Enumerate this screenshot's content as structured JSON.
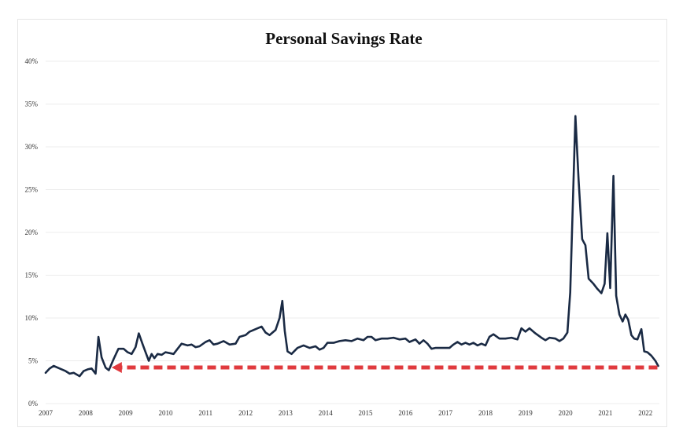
{
  "chart_data": {
    "type": "line",
    "title": "Personal Savings Rate",
    "xlabel": "",
    "ylabel": "",
    "xlim": [
      2007.0,
      2022.35
    ],
    "ylim": [
      0,
      40
    ],
    "grid": true,
    "x_ticks": [
      "2007",
      "2008",
      "2009",
      "2010",
      "2011",
      "2012",
      "2013",
      "2014",
      "2015",
      "2016",
      "2017",
      "2018",
      "2019",
      "2020",
      "2021",
      "2022"
    ],
    "y_ticks": [
      "0%",
      "5%",
      "10%",
      "15%",
      "20%",
      "25%",
      "30%",
      "35%",
      "40%"
    ],
    "line_color": "#1a2a44",
    "series": [
      {
        "points": [
          [
            2007.0,
            3.6
          ],
          [
            2007.1,
            4.1
          ],
          [
            2007.2,
            4.4
          ],
          [
            2007.35,
            4.1
          ],
          [
            2007.5,
            3.8
          ],
          [
            2007.6,
            3.5
          ],
          [
            2007.7,
            3.6
          ],
          [
            2007.85,
            3.2
          ],
          [
            2007.95,
            3.8
          ],
          [
            2008.05,
            4.0
          ],
          [
            2008.15,
            4.1
          ],
          [
            2008.25,
            3.5
          ],
          [
            2008.32,
            7.8
          ],
          [
            2008.4,
            5.4
          ],
          [
            2008.5,
            4.2
          ],
          [
            2008.58,
            3.9
          ],
          [
            2008.7,
            5.2
          ],
          [
            2008.82,
            6.4
          ],
          [
            2008.95,
            6.4
          ],
          [
            2009.05,
            6.0
          ],
          [
            2009.15,
            5.8
          ],
          [
            2009.25,
            6.6
          ],
          [
            2009.33,
            8.2
          ],
          [
            2009.42,
            7.0
          ],
          [
            2009.5,
            6.0
          ],
          [
            2009.58,
            5.0
          ],
          [
            2009.65,
            5.8
          ],
          [
            2009.72,
            5.3
          ],
          [
            2009.8,
            5.8
          ],
          [
            2009.9,
            5.7
          ],
          [
            2010.0,
            6.0
          ],
          [
            2010.1,
            5.9
          ],
          [
            2010.2,
            5.8
          ],
          [
            2010.3,
            6.4
          ],
          [
            2010.4,
            7.0
          ],
          [
            2010.55,
            6.8
          ],
          [
            2010.65,
            6.9
          ],
          [
            2010.75,
            6.6
          ],
          [
            2010.85,
            6.7
          ],
          [
            2011.0,
            7.2
          ],
          [
            2011.1,
            7.4
          ],
          [
            2011.2,
            6.9
          ],
          [
            2011.3,
            7.0
          ],
          [
            2011.45,
            7.3
          ],
          [
            2011.6,
            6.9
          ],
          [
            2011.75,
            7.0
          ],
          [
            2011.85,
            7.8
          ],
          [
            2012.0,
            8.0
          ],
          [
            2012.1,
            8.4
          ],
          [
            2012.25,
            8.7
          ],
          [
            2012.4,
            9.0
          ],
          [
            2012.5,
            8.3
          ],
          [
            2012.6,
            8.0
          ],
          [
            2012.75,
            8.6
          ],
          [
            2012.85,
            10.0
          ],
          [
            2012.92,
            12.0
          ],
          [
            2012.98,
            8.5
          ],
          [
            2013.05,
            6.1
          ],
          [
            2013.15,
            5.8
          ],
          [
            2013.3,
            6.5
          ],
          [
            2013.45,
            6.8
          ],
          [
            2013.6,
            6.5
          ],
          [
            2013.75,
            6.7
          ],
          [
            2013.85,
            6.3
          ],
          [
            2013.95,
            6.5
          ],
          [
            2014.05,
            7.1
          ],
          [
            2014.2,
            7.1
          ],
          [
            2014.35,
            7.3
          ],
          [
            2014.5,
            7.4
          ],
          [
            2014.65,
            7.3
          ],
          [
            2014.8,
            7.6
          ],
          [
            2014.95,
            7.4
          ],
          [
            2015.05,
            7.8
          ],
          [
            2015.15,
            7.8
          ],
          [
            2015.25,
            7.4
          ],
          [
            2015.4,
            7.6
          ],
          [
            2015.55,
            7.6
          ],
          [
            2015.7,
            7.7
          ],
          [
            2015.85,
            7.5
          ],
          [
            2016.0,
            7.6
          ],
          [
            2016.1,
            7.2
          ],
          [
            2016.25,
            7.5
          ],
          [
            2016.35,
            7.0
          ],
          [
            2016.45,
            7.4
          ],
          [
            2016.55,
            7.0
          ],
          [
            2016.65,
            6.4
          ],
          [
            2016.75,
            6.5
          ],
          [
            2016.9,
            6.5
          ],
          [
            2017.0,
            6.5
          ],
          [
            2017.1,
            6.5
          ],
          [
            2017.2,
            6.9
          ],
          [
            2017.3,
            7.2
          ],
          [
            2017.4,
            6.9
          ],
          [
            2017.5,
            7.1
          ],
          [
            2017.6,
            6.9
          ],
          [
            2017.7,
            7.1
          ],
          [
            2017.8,
            6.8
          ],
          [
            2017.9,
            7.0
          ],
          [
            2018.0,
            6.8
          ],
          [
            2018.1,
            7.8
          ],
          [
            2018.2,
            8.1
          ],
          [
            2018.35,
            7.6
          ],
          [
            2018.5,
            7.6
          ],
          [
            2018.65,
            7.7
          ],
          [
            2018.8,
            7.5
          ],
          [
            2018.9,
            8.8
          ],
          [
            2019.0,
            8.4
          ],
          [
            2019.1,
            8.8
          ],
          [
            2019.25,
            8.2
          ],
          [
            2019.4,
            7.7
          ],
          [
            2019.5,
            7.4
          ],
          [
            2019.6,
            7.7
          ],
          [
            2019.75,
            7.6
          ],
          [
            2019.85,
            7.3
          ],
          [
            2019.95,
            7.6
          ],
          [
            2020.05,
            8.3
          ],
          [
            2020.12,
            13.0
          ],
          [
            2020.25,
            33.6
          ],
          [
            2020.33,
            26.0
          ],
          [
            2020.42,
            19.2
          ],
          [
            2020.5,
            18.5
          ],
          [
            2020.58,
            14.6
          ],
          [
            2020.7,
            14.0
          ],
          [
            2020.8,
            13.4
          ],
          [
            2020.9,
            12.9
          ],
          [
            2020.98,
            14.0
          ],
          [
            2021.05,
            19.9
          ],
          [
            2021.12,
            13.5
          ],
          [
            2021.2,
            26.6
          ],
          [
            2021.27,
            12.6
          ],
          [
            2021.35,
            10.4
          ],
          [
            2021.43,
            9.6
          ],
          [
            2021.5,
            10.4
          ],
          [
            2021.57,
            9.8
          ],
          [
            2021.65,
            8.0
          ],
          [
            2021.72,
            7.6
          ],
          [
            2021.8,
            7.5
          ],
          [
            2021.9,
            8.7
          ],
          [
            2021.97,
            6.1
          ],
          [
            2022.05,
            6.0
          ],
          [
            2022.15,
            5.6
          ],
          [
            2022.25,
            5.0
          ],
          [
            2022.32,
            4.4
          ]
        ]
      }
    ],
    "annotations": [
      {
        "type": "dashed-arrow",
        "color": "#e03a3e",
        "level": 4.4,
        "from": 2022.3,
        "to": 2008.65,
        "direction": "left"
      }
    ]
  }
}
